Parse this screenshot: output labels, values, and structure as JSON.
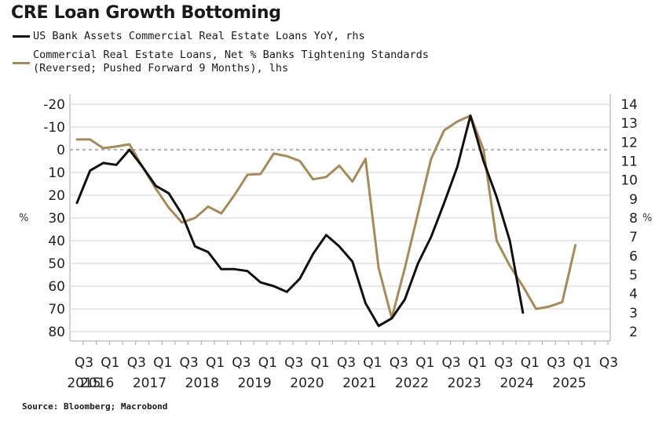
{
  "chart_data": {
    "type": "line",
    "title": "CRE Loan Growth Bottoming",
    "source": "Source: Bloomberg; Macrobond",
    "legend": [
      {
        "name": "US Bank Assets Commercial Real Estate Loans YoY, rhs",
        "color": "#111111"
      },
      {
        "name": "Commercial Real Estate Loans, Net % Banks Tightening Standards",
        "name_line2": "(Reversed; Pushed Forward 9 Months), lhs",
        "color": "#a88a5a"
      }
    ],
    "left_axis": {
      "label": "%",
      "reversed": true,
      "range": [
        -20,
        80
      ],
      "ticks": [
        "-20",
        "-10",
        "0",
        "10",
        "20",
        "30",
        "40",
        "50",
        "60",
        "70",
        "80"
      ]
    },
    "right_axis": {
      "label": "%",
      "range": [
        2,
        14
      ],
      "ticks": [
        "14",
        "13",
        "12",
        "11",
        "10",
        "9",
        "8",
        "7",
        "6",
        "5",
        "4",
        "3",
        "2"
      ]
    },
    "x_ticks": [
      {
        "q": "Q3",
        "year": "2015"
      },
      {
        "q": "Q1",
        "year": "2016"
      },
      {
        "q": "Q3",
        "year": ""
      },
      {
        "q": "Q1",
        "year": "2017"
      },
      {
        "q": "Q3",
        "year": ""
      },
      {
        "q": "Q1",
        "year": "2018"
      },
      {
        "q": "Q3",
        "year": ""
      },
      {
        "q": "Q1",
        "year": "2019"
      },
      {
        "q": "Q3",
        "year": ""
      },
      {
        "q": "Q1",
        "year": "2020"
      },
      {
        "q": "Q3",
        "year": ""
      },
      {
        "q": "Q1",
        "year": "2021"
      },
      {
        "q": "Q3",
        "year": ""
      },
      {
        "q": "Q1",
        "year": "2022"
      },
      {
        "q": "Q3",
        "year": ""
      },
      {
        "q": "Q1",
        "year": "2023"
      },
      {
        "q": "Q3",
        "year": ""
      },
      {
        "q": "Q1",
        "year": "2024"
      },
      {
        "q": "Q3",
        "year": ""
      },
      {
        "q": "Q1",
        "year": "2025"
      },
      {
        "q": "Q3",
        "year": ""
      }
    ],
    "x_start": "2015Q3",
    "x_end": "2025Q3",
    "zero_line_left": 0,
    "grid": true,
    "series": [
      {
        "name": "US Bank Assets Commercial Real Estate Loans YoY",
        "axis": "right",
        "color": "#111111",
        "start": "2015Q3",
        "values": [
          8.8,
          10.5,
          10.9,
          10.8,
          11.6,
          10.7,
          9.7,
          9.3,
          8.2,
          6.5,
          6.2,
          5.3,
          5.3,
          5.2,
          4.6,
          4.4,
          4.1,
          4.8,
          6.1,
          7.1,
          6.5,
          5.7,
          3.5,
          2.3,
          2.7,
          3.7,
          5.6,
          7.0,
          8.8,
          10.7,
          13.4,
          11.0,
          9.1,
          6.8,
          3.0
        ]
      },
      {
        "name": "Commercial Real Estate Loans, Net % Banks Tightening Standards (Reversed; Pushed Forward 9 Months)",
        "axis": "left",
        "color": "#a88a5a",
        "start": "2015Q3",
        "values": [
          -4.5,
          -4.5,
          -0.7,
          -1.4,
          -2.4,
          7.6,
          17,
          25.5,
          32,
          30,
          25,
          28,
          20,
          11,
          10.7,
          1.7,
          2.8,
          5,
          13,
          12,
          7,
          14,
          4,
          52,
          74,
          52,
          28,
          4,
          -8.6,
          -12.4,
          -15,
          0,
          40,
          51,
          60,
          70,
          69,
          67,
          42
        ]
      }
    ]
  }
}
